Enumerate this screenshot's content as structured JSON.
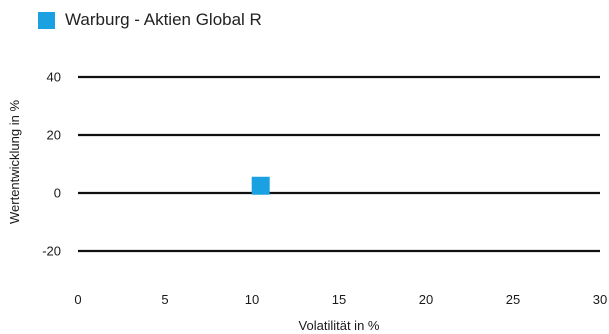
{
  "legend": {
    "label": "Warburg - Aktien Global R",
    "color": "#1ba1e2",
    "marker": "square"
  },
  "chart_data": {
    "type": "scatter",
    "xlabel": "Volatilität in %",
    "ylabel": "Wertentwicklung in %",
    "xlim": [
      0,
      30
    ],
    "ylim": [
      -20,
      40
    ],
    "x_ticks": [
      0,
      5,
      10,
      15,
      20,
      25,
      30
    ],
    "y_ticks": [
      -20,
      0,
      20,
      40
    ],
    "grid": "horizontal",
    "legend_position": "top-left",
    "series": [
      {
        "name": "Warburg - Aktien Global R",
        "color": "#1ba1e2",
        "points": [
          {
            "x": 10.5,
            "y": 2.5
          }
        ]
      }
    ]
  }
}
